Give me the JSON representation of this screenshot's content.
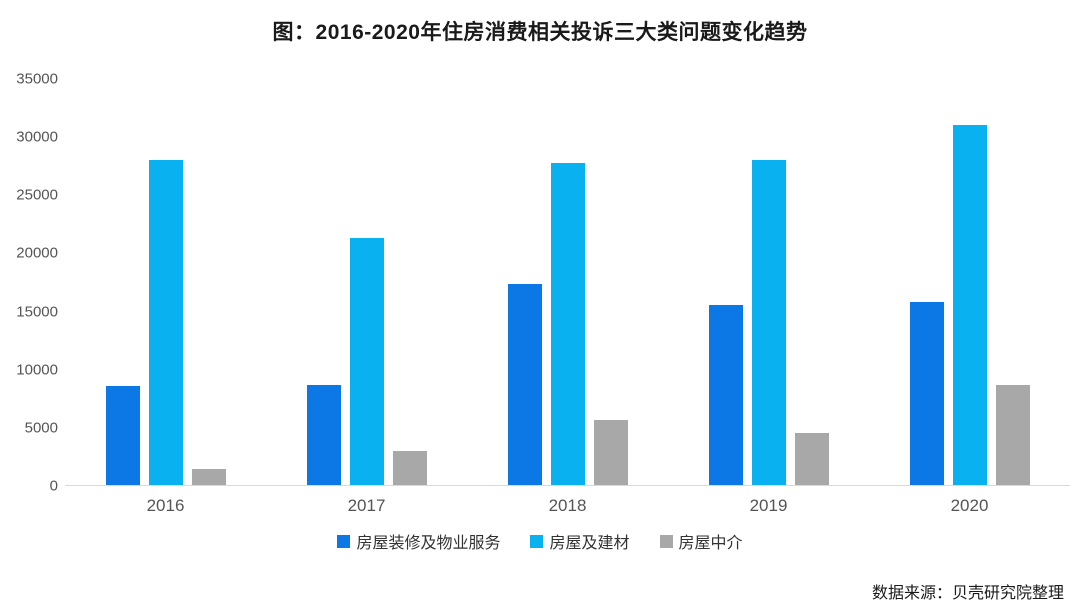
{
  "title": "图：2016-2020年住房消费相关投诉三大类问题变化趋势",
  "source_note": "数据来源：贝壳研究院整理",
  "colors": {
    "series_blue": "#0b78e6",
    "series_cyan": "#0ab1f0",
    "series_gray": "#a8a8a8",
    "axis_line": "#d9d9d9",
    "tick_text": "#555555",
    "title_text": "#1a1a1a"
  },
  "chart_data": {
    "type": "bar",
    "title": "图：2016-2020年住房消费相关投诉三大类问题变化趋势",
    "categories": [
      "2016",
      "2017",
      "2018",
      "2019",
      "2020"
    ],
    "series": [
      {
        "name": "房屋装修及物业服务",
        "color": "#0b78e6",
        "values": [
          8500,
          8600,
          17300,
          15500,
          15800
        ]
      },
      {
        "name": "房屋及建材",
        "color": "#0ab1f0",
        "values": [
          28000,
          21300,
          27800,
          28000,
          31000
        ]
      },
      {
        "name": "房屋中介",
        "color": "#a8a8a8",
        "values": [
          1400,
          2900,
          5600,
          4500,
          8600
        ]
      }
    ],
    "xlabel": "",
    "ylabel": "",
    "ylim": [
      0,
      35000
    ],
    "yticks": [
      0,
      5000,
      10000,
      15000,
      20000,
      25000,
      30000,
      35000
    ],
    "grid": false,
    "legend_position": "bottom"
  }
}
